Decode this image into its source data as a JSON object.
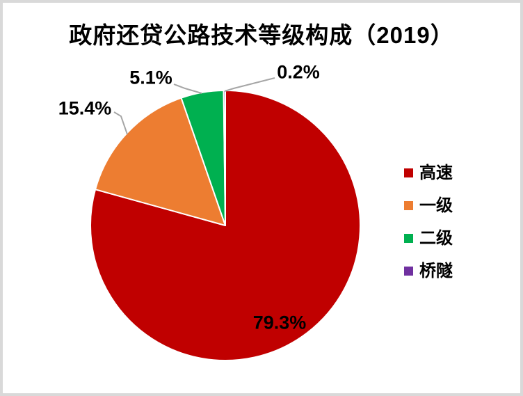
{
  "chart_data": {
    "type": "pie",
    "title": "政府还贷公路技术等级构成（2019）",
    "start_angle_deg": 0,
    "direction": "clockwise",
    "legend_position": "right",
    "background_color": "#FFFFFF",
    "border_color": "#D9D9D9",
    "label_color": "#000000",
    "leader_line_color": "#A6A6A6",
    "slice_separator_color": "#FFFFFF",
    "slices": [
      {
        "name": "高速",
        "value": 79.3,
        "label": "79.3%",
        "color": "#C00000"
      },
      {
        "name": "一级",
        "value": 15.4,
        "label": "15.4%",
        "color": "#ED7D31"
      },
      {
        "name": "二级",
        "value": 5.1,
        "label": "5.1%",
        "color": "#00B050"
      },
      {
        "name": "桥隧",
        "value": 0.2,
        "label": "0.2%",
        "color": "#7030A0"
      }
    ]
  }
}
